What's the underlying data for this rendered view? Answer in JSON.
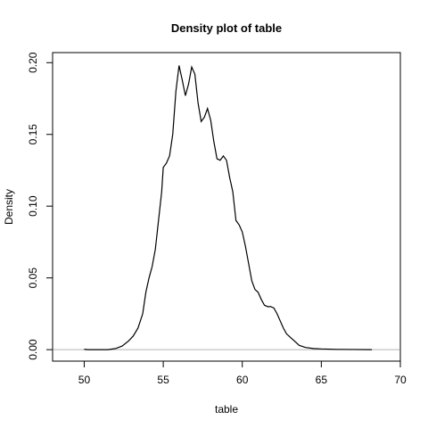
{
  "chart_data": {
    "type": "line",
    "title": "Density plot of  table",
    "xlabel": "table",
    "ylabel": "Density",
    "xlim": [
      48,
      70
    ],
    "ylim": [
      -0.008,
      0.207
    ],
    "xticks": [
      50,
      55,
      60,
      65,
      70
    ],
    "xtick_labels": [
      "50",
      "55",
      "60",
      "65",
      "70"
    ],
    "yticks": [
      0.0,
      0.05,
      0.1,
      0.15,
      0.2
    ],
    "ytick_labels": [
      "0.00",
      "0.05",
      "0.10",
      "0.15",
      "0.20"
    ],
    "baseline": 0,
    "grid": false,
    "line_color": "#000000",
    "baseline_color": "#b3b3b3",
    "series": [
      {
        "x": [
          50.0,
          50.2,
          51.5,
          52.0,
          52.4,
          52.8,
          53.1,
          53.4,
          53.7,
          53.9,
          54.1,
          54.3,
          54.5,
          54.7,
          54.9,
          55.0,
          55.2,
          55.4,
          55.6,
          55.8,
          56.0,
          56.2,
          56.4,
          56.6,
          56.8,
          57.0,
          57.2,
          57.4,
          57.6,
          57.8,
          58.0,
          58.2,
          58.4,
          58.6,
          58.8,
          59.0,
          59.2,
          59.4,
          59.6,
          59.8,
          60.0,
          60.2,
          60.4,
          60.6,
          60.8,
          61.0,
          61.2,
          61.4,
          61.6,
          61.8,
          62.0,
          62.2,
          62.4,
          62.6,
          62.8,
          63.0,
          63.3,
          63.6,
          64.0,
          64.5,
          65.0,
          66.0,
          67.0,
          68.2
        ],
        "y": [
          0.0003,
          0.0,
          0.0,
          0.0008,
          0.0025,
          0.006,
          0.0095,
          0.015,
          0.025,
          0.04,
          0.05,
          0.058,
          0.07,
          0.09,
          0.11,
          0.127,
          0.13,
          0.135,
          0.15,
          0.18,
          0.198,
          0.188,
          0.177,
          0.185,
          0.197,
          0.192,
          0.172,
          0.159,
          0.162,
          0.168,
          0.16,
          0.145,
          0.133,
          0.132,
          0.135,
          0.132,
          0.12,
          0.11,
          0.09,
          0.087,
          0.082,
          0.072,
          0.06,
          0.048,
          0.042,
          0.04,
          0.035,
          0.031,
          0.03,
          0.03,
          0.029,
          0.025,
          0.02,
          0.015,
          0.011,
          0.009,
          0.006,
          0.003,
          0.0015,
          0.0008,
          0.0005,
          0.0002,
          0.0001,
          0.0
        ]
      }
    ]
  }
}
